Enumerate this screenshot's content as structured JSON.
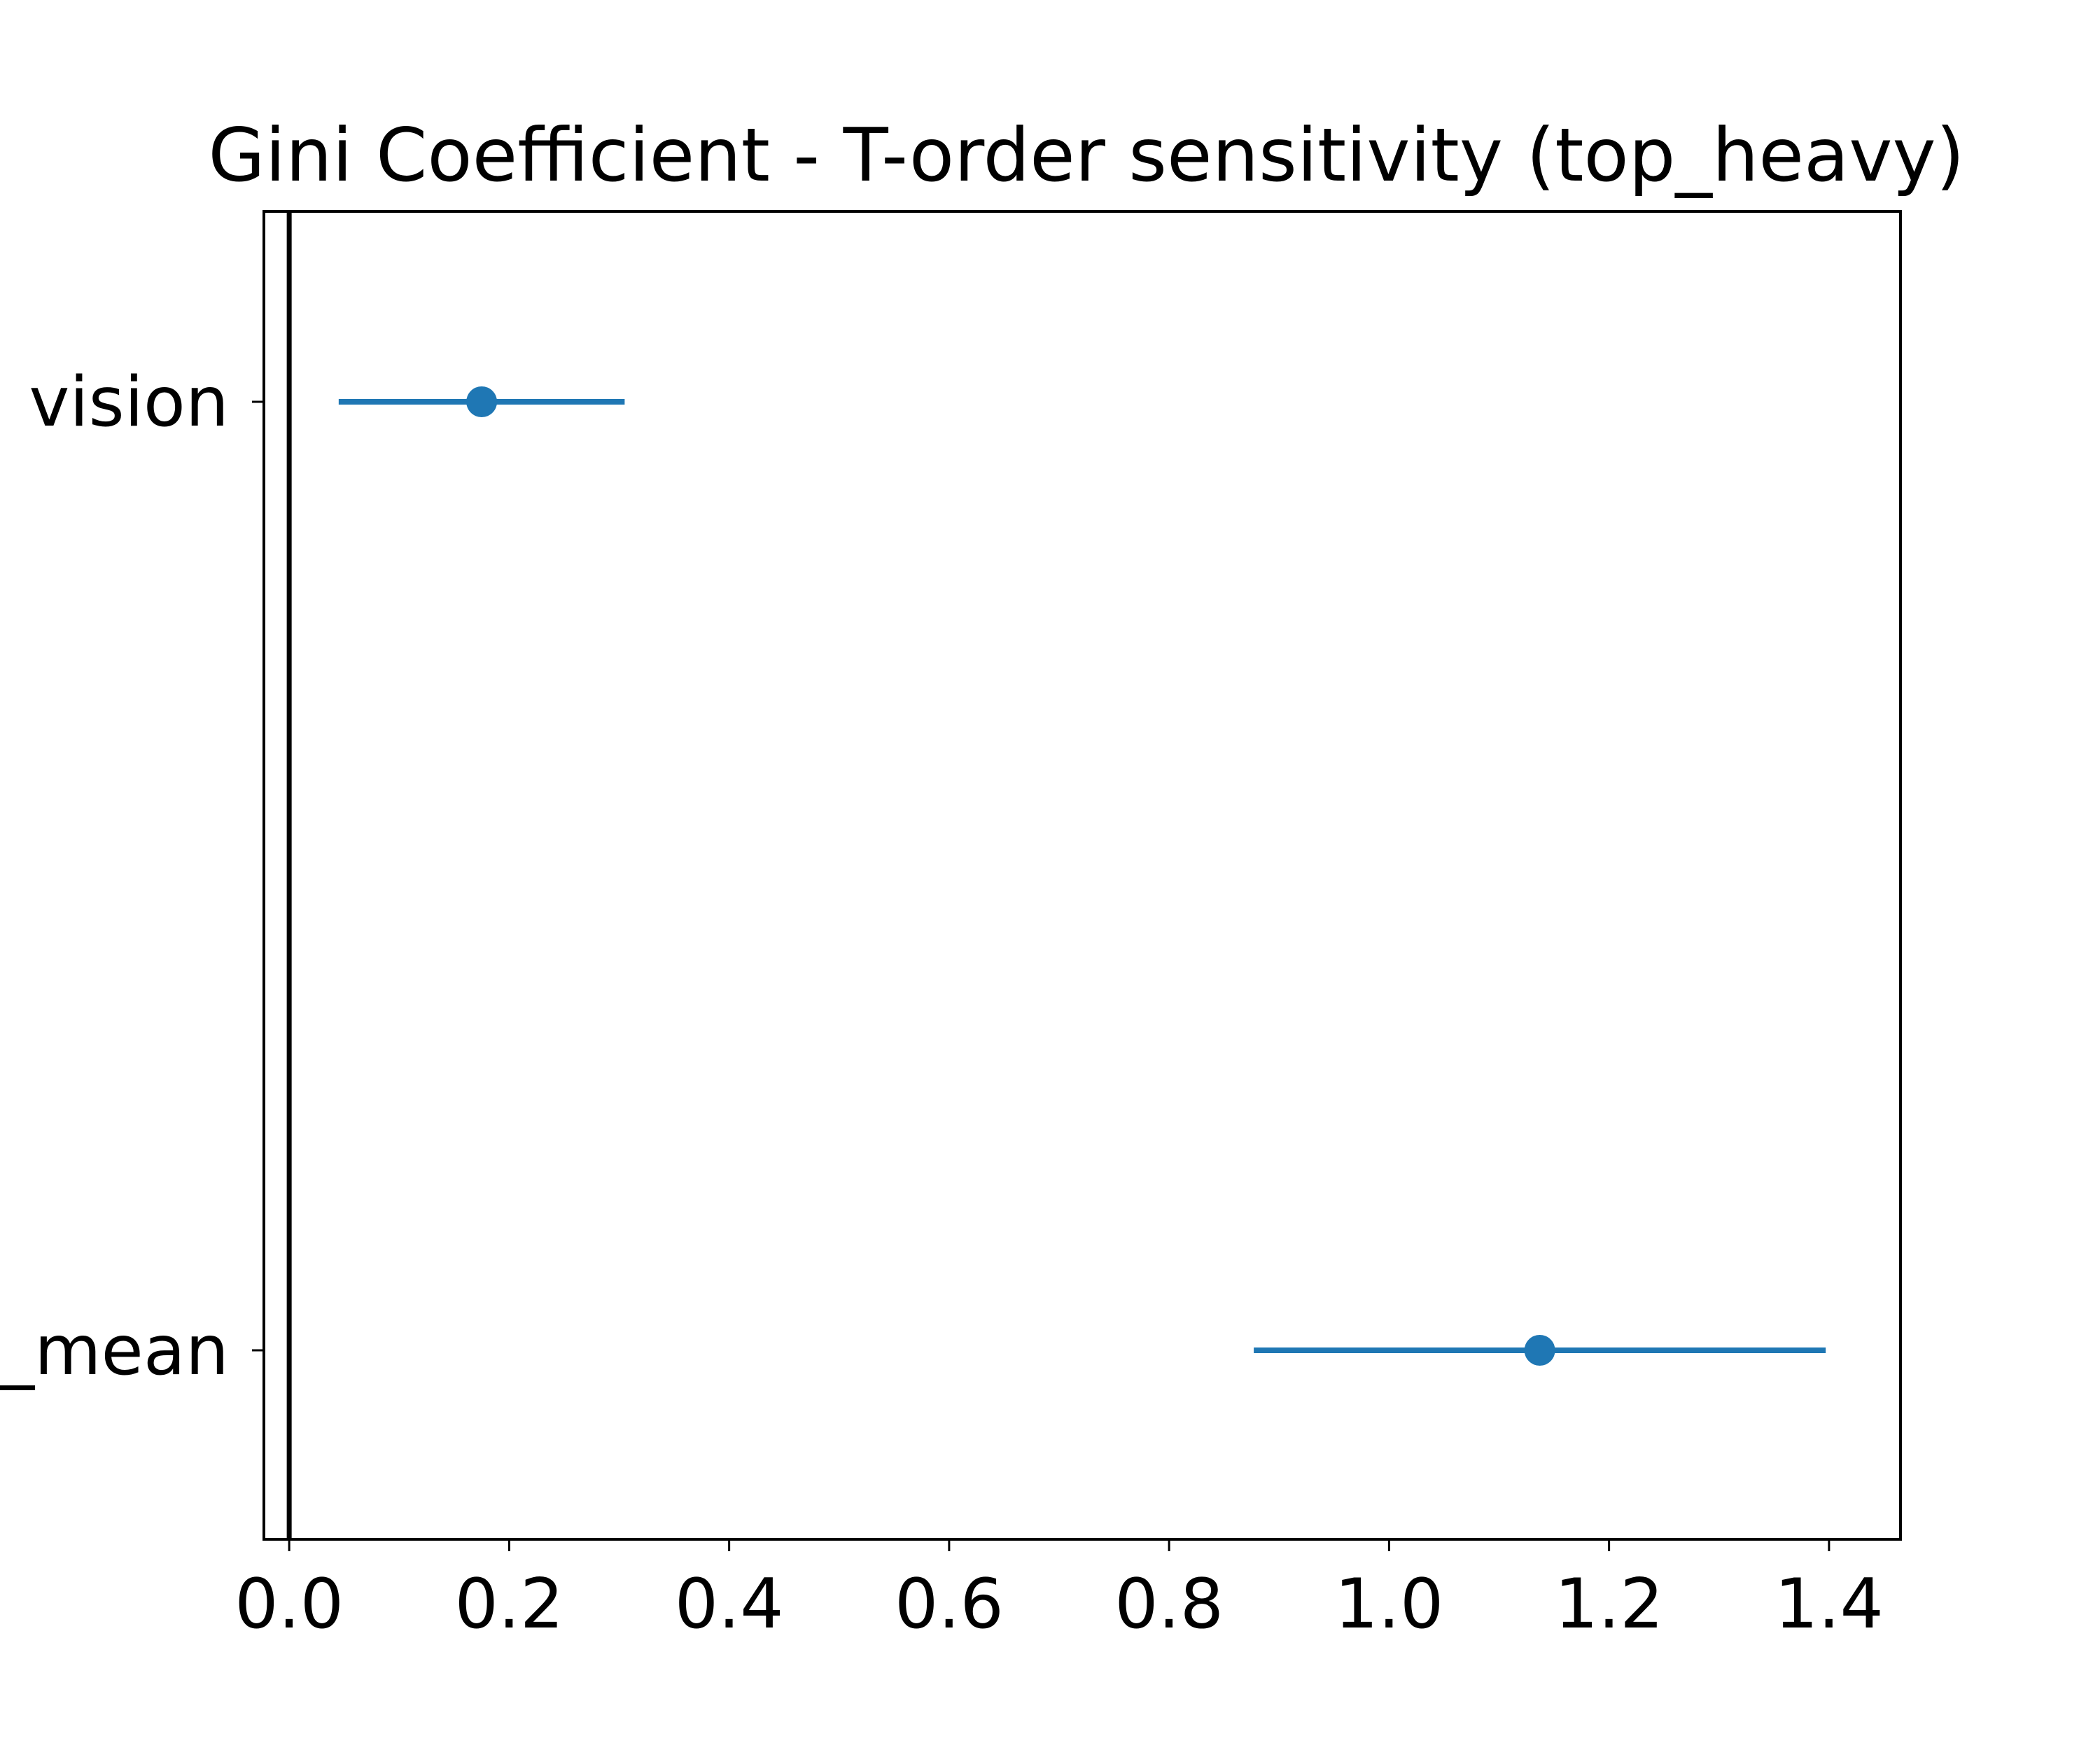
{
  "chart_data": {
    "type": "scatter",
    "title": "Gini Coefficient - T-order sensitivity (top_heavy)",
    "xlabel": "",
    "ylabel": "",
    "xlim": [
      -0.023,
      1.465
    ],
    "xticks": [
      "0.0",
      "0.2",
      "0.4",
      "0.6",
      "0.8",
      "1.0",
      "1.2",
      "1.4"
    ],
    "xtick_values": [
      0.0,
      0.2,
      0.4,
      0.6,
      0.8,
      1.0,
      1.2,
      1.4
    ],
    "categories": [
      "vision",
      "_mean"
    ],
    "points": [
      {
        "label": "vision",
        "value": 0.175,
        "ci_low": 0.045,
        "ci_high": 0.305
      },
      {
        "label": "_mean",
        "value": 1.137,
        "ci_low": 0.877,
        "ci_high": 1.397
      }
    ],
    "reference_line_x": 0.0,
    "grid": false,
    "legend": "none",
    "colors": {
      "marker": "#1f77b4",
      "reference_line": "#000000",
      "axes": "#000000"
    }
  }
}
